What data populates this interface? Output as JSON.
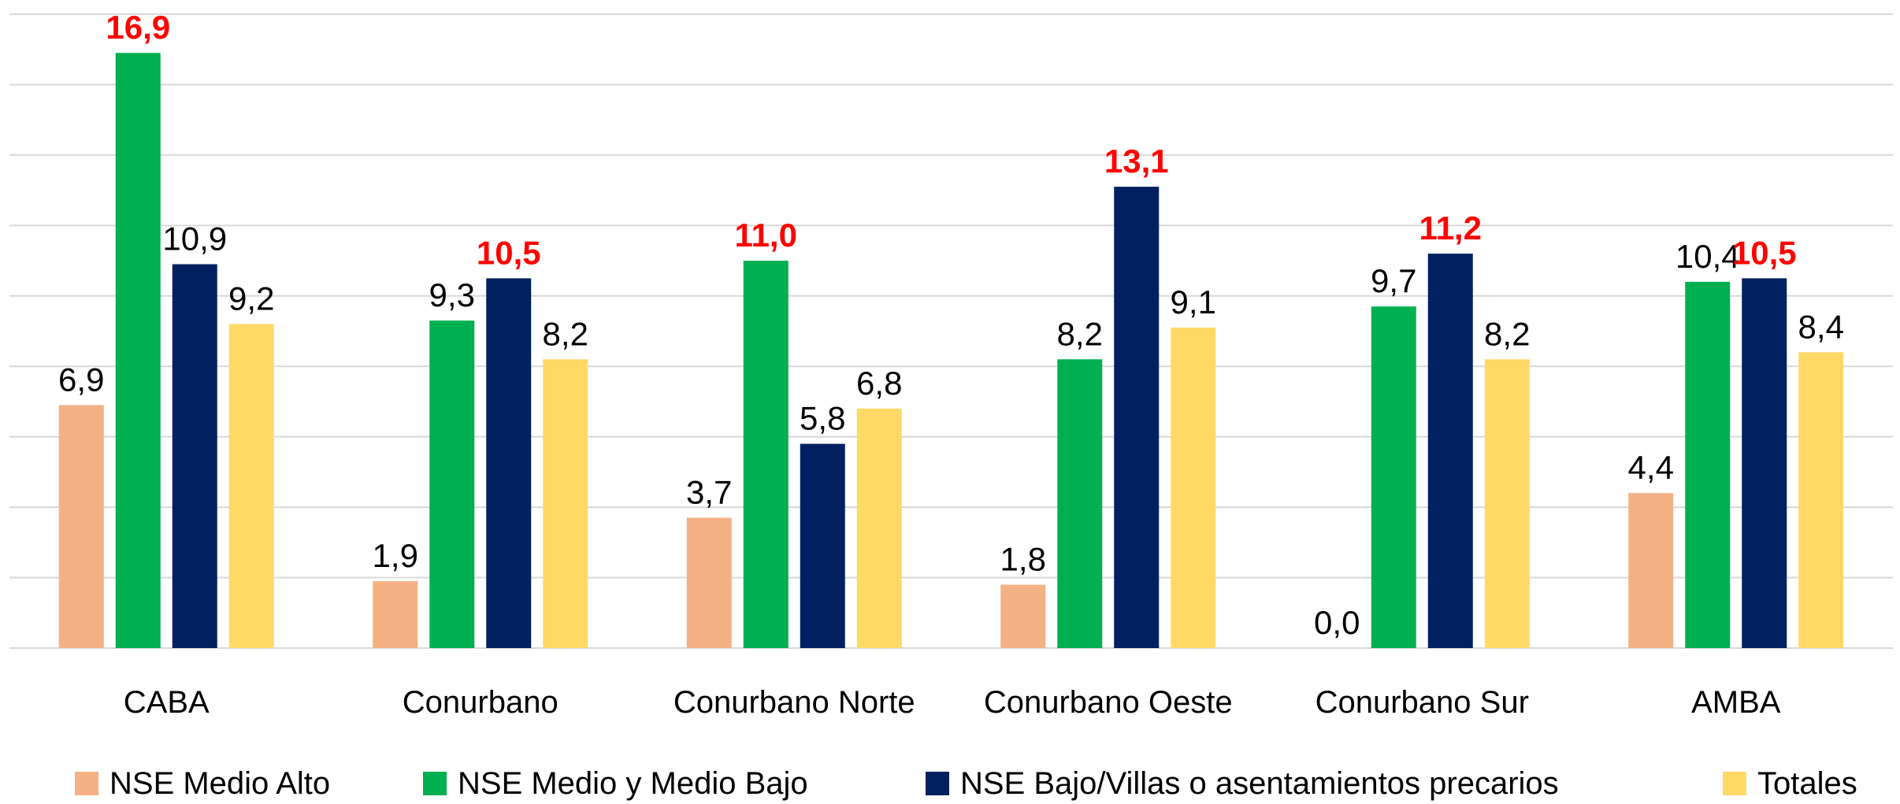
{
  "chart_data": {
    "type": "bar",
    "categories": [
      "CABA",
      "Conurbano",
      "Conurbano Norte",
      "Conurbano Oeste",
      "Conurbano Sur",
      "AMBA"
    ],
    "series": [
      {
        "name": "NSE Medio Alto",
        "color": "#f4b183",
        "values": [
          6.9,
          1.9,
          3.7,
          1.8,
          0.0,
          4.4
        ],
        "value_labels": [
          "6,9",
          "1,9",
          "3,7",
          "1,8",
          "0,0",
          "4,4"
        ]
      },
      {
        "name": "NSE Medio y Medio Bajo",
        "color": "#00b050",
        "values": [
          16.9,
          9.3,
          11.0,
          8.2,
          9.7,
          10.4
        ],
        "value_labels": [
          "16,9",
          "9,3",
          "11,0",
          "8,2",
          "9,7",
          "10,4"
        ]
      },
      {
        "name": "NSE Bajo/Villas o asentamientos precarios",
        "color": "#002060",
        "values": [
          10.9,
          10.5,
          5.8,
          13.1,
          11.2,
          10.5
        ],
        "value_labels": [
          "10,9",
          "10,5",
          "5,8",
          "13,1",
          "11,2",
          "10,5"
        ]
      },
      {
        "name": "Totales",
        "color": "#ffd966",
        "values": [
          9.2,
          8.2,
          6.8,
          9.1,
          8.2,
          8.4
        ],
        "value_labels": [
          "9,2",
          "8,2",
          "6,8",
          "9,1",
          "8,2",
          "8,4"
        ]
      }
    ],
    "ylim": [
      0,
      18
    ],
    "yticks": [
      0,
      2,
      4,
      6,
      8,
      10,
      12,
      14,
      16,
      18
    ],
    "grid": true,
    "legend": "bottom",
    "highlight_color": "#ff0000"
  }
}
